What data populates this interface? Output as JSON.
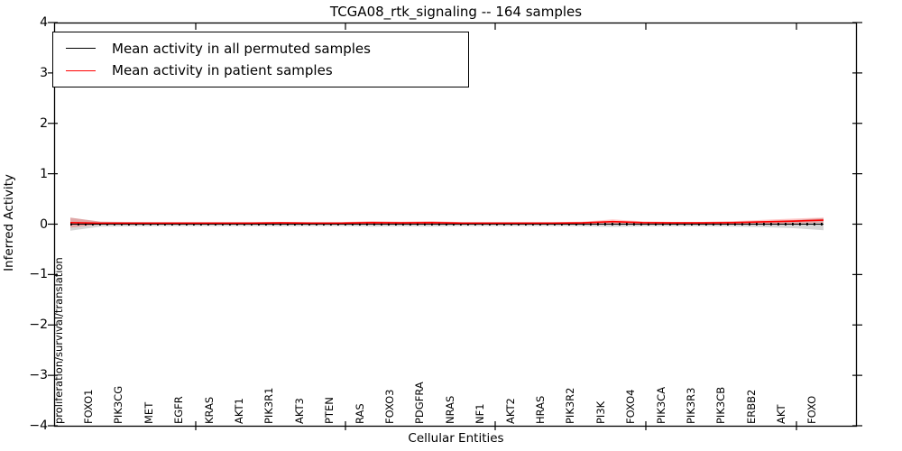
{
  "chart_data": {
    "type": "line",
    "title": "TCGA08_rtk_signaling -- 164 samples",
    "xlabel": "Cellular Entities",
    "ylabel": "Inferred Activity",
    "ylim": [
      -4,
      4
    ],
    "grid": false,
    "legend_position": "upper left",
    "yticks": [
      {
        "v": 4,
        "label": "4"
      },
      {
        "v": 3,
        "label": "3"
      },
      {
        "v": 2,
        "label": "2"
      },
      {
        "v": 1,
        "label": "1"
      },
      {
        "v": 0,
        "label": "0"
      },
      {
        "v": -1,
        "label": "−1"
      },
      {
        "v": -2,
        "label": "−2"
      },
      {
        "v": -3,
        "label": "−3"
      },
      {
        "v": -4,
        "label": "−4"
      }
    ],
    "categories": [
      "proliferation/survival/translation",
      "FOXO1",
      "PIK3CG",
      "MET",
      "EGFR",
      "KRAS",
      "AKT1",
      "PIK3R1",
      "AKT3",
      "PTEN",
      "RAS",
      "FOXO3",
      "PDGFRA",
      "NRAS",
      "NF1",
      "AKT2",
      "HRAS",
      "PIK3R2",
      "PI3K",
      "FOXO4",
      "PIK3CA",
      "PIK3R3",
      "PIK3CB",
      "ERBB2",
      "AKT",
      "FOXO"
    ],
    "series": [
      {
        "name": "Mean activity in all permuted samples",
        "color": "#000000",
        "line_style": "solid_with_tick_markers",
        "band_color": "rgba(0,0,0,0.16)",
        "values": [
          0,
          0,
          0,
          0,
          0,
          0,
          0,
          0,
          0,
          0,
          0,
          0,
          0,
          0,
          0,
          0,
          0,
          0,
          0,
          0,
          0,
          0,
          0,
          0,
          0,
          0
        ],
        "band_halfwidth": [
          0.13,
          0.05,
          0.045,
          0.04,
          0.04,
          0.04,
          0.04,
          0.045,
          0.04,
          0.04,
          0.05,
          0.045,
          0.05,
          0.04,
          0.04,
          0.04,
          0.04,
          0.045,
          0.055,
          0.045,
          0.045,
          0.045,
          0.05,
          0.06,
          0.08,
          0.12
        ]
      },
      {
        "name": "Mean activity in patient samples",
        "color": "#ff0000",
        "line_style": "solid",
        "band_color": "rgba(255,0,0,0.22)",
        "values": [
          0.03,
          0.02,
          0.02,
          0.02,
          0.02,
          0.02,
          0.02,
          0.025,
          0.02,
          0.02,
          0.03,
          0.025,
          0.03,
          0.02,
          0.02,
          0.02,
          0.02,
          0.025,
          0.05,
          0.03,
          0.025,
          0.025,
          0.03,
          0.045,
          0.06,
          0.08
        ],
        "band_halfwidth": [
          0.1,
          0.03,
          0.02,
          0.02,
          0.02,
          0.02,
          0.02,
          0.02,
          0.02,
          0.02,
          0.03,
          0.025,
          0.03,
          0.02,
          0.02,
          0.02,
          0.02,
          0.025,
          0.045,
          0.025,
          0.02,
          0.02,
          0.03,
          0.04,
          0.05,
          0.05
        ]
      }
    ]
  }
}
